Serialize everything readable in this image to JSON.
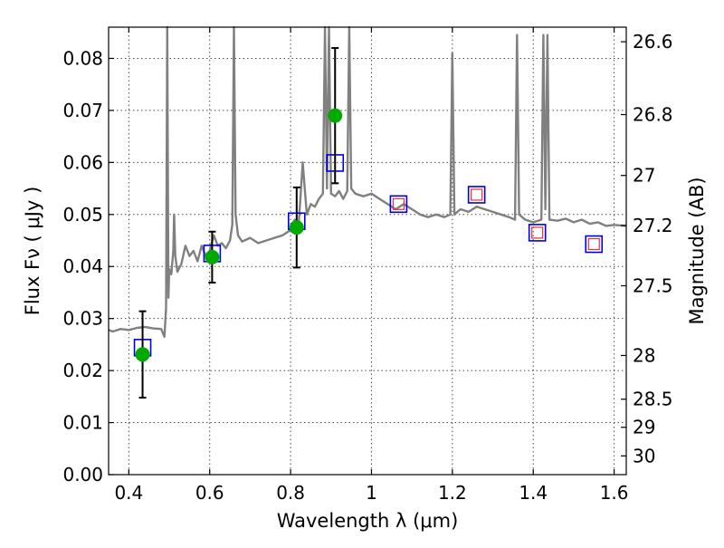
{
  "chart_data": {
    "type": "scatter",
    "title": "",
    "xlabel": "Wavelength  λ (μm)",
    "ylabel": "Flux  Fν  ( μJy )",
    "y2label": "Magnitude (AB)",
    "xlim": [
      0.35,
      1.63
    ],
    "ylim": [
      0.0,
      0.086
    ],
    "x_ticks": [
      0.4,
      0.6,
      0.8,
      1.0,
      1.2,
      1.4,
      1.6
    ],
    "x_tick_labels": [
      "0.4",
      "0.6",
      "0.8",
      "1",
      "1.2",
      "1.4",
      "1.6"
    ],
    "y_ticks": [
      0.0,
      0.01,
      0.02,
      0.03,
      0.04,
      0.05,
      0.06,
      0.07,
      0.08
    ],
    "y_tick_labels": [
      "0.00",
      "0.01",
      "0.02",
      "0.03",
      "0.04",
      "0.05",
      "0.06",
      "0.07",
      "0.08"
    ],
    "y2_ticks": [
      {
        "label": "26.6",
        "flux": 0.0832
      },
      {
        "label": "26.8",
        "flux": 0.0692
      },
      {
        "label": "27",
        "flux": 0.0575
      },
      {
        "label": "27.2",
        "flux": 0.0479
      },
      {
        "label": "27.5",
        "flux": 0.0363
      },
      {
        "label": "28",
        "flux": 0.0229
      },
      {
        "label": "28.5",
        "flux": 0.0145
      },
      {
        "label": "29",
        "flux": 0.0091
      },
      {
        "label": "30",
        "flux": 0.0036
      }
    ],
    "grid": true,
    "colors": {
      "model": "#808080",
      "observed": "#00aa00",
      "model_photometry": "#0000dd",
      "inner_box": "#dd3333",
      "errorbar": "#000000"
    },
    "series": [
      {
        "kind": "line",
        "x": [
          0.35,
          0.36,
          0.38,
          0.4,
          0.42,
          0.44,
          0.46,
          0.48,
          0.488,
          0.492,
          0.495,
          0.498,
          0.5,
          0.505,
          0.51,
          0.512,
          0.515,
          0.52,
          0.53,
          0.54,
          0.55,
          0.56,
          0.57,
          0.58,
          0.59,
          0.6,
          0.61,
          0.62,
          0.63,
          0.64,
          0.65,
          0.656,
          0.66,
          0.664,
          0.67,
          0.68,
          0.7,
          0.72,
          0.74,
          0.76,
          0.78,
          0.8,
          0.81,
          0.82,
          0.83,
          0.84,
          0.85,
          0.86,
          0.87,
          0.88,
          0.885,
          0.89,
          0.895,
          0.9,
          0.91,
          0.92,
          0.93,
          0.94,
          0.945,
          0.95,
          0.96,
          0.98,
          1.0,
          1.02,
          1.04,
          1.06,
          1.08,
          1.1,
          1.12,
          1.14,
          1.16,
          1.18,
          1.195,
          1.2,
          1.205,
          1.22,
          1.24,
          1.26,
          1.28,
          1.3,
          1.32,
          1.34,
          1.355,
          1.36,
          1.365,
          1.38,
          1.4,
          1.42,
          1.425,
          1.43,
          1.435,
          1.44,
          1.46,
          1.48,
          1.5,
          1.52,
          1.54,
          1.56,
          1.58,
          1.6,
          1.63
        ],
        "y": [
          0.0278,
          0.0275,
          0.028,
          0.0278,
          0.0282,
          0.0284,
          0.0281,
          0.028,
          0.0265,
          0.032,
          0.0865,
          0.034,
          0.0395,
          0.0385,
          0.043,
          0.05,
          0.042,
          0.039,
          0.0405,
          0.044,
          0.042,
          0.043,
          0.041,
          0.044,
          0.042,
          0.043,
          0.046,
          0.044,
          0.0445,
          0.0435,
          0.045,
          0.048,
          0.0865,
          0.05,
          0.046,
          0.0448,
          0.0455,
          0.0445,
          0.045,
          0.0455,
          0.046,
          0.047,
          0.049,
          0.048,
          0.06,
          0.05,
          0.052,
          0.0515,
          0.053,
          0.054,
          0.0865,
          0.055,
          0.0865,
          0.054,
          0.0535,
          0.0545,
          0.053,
          0.0545,
          0.0865,
          0.055,
          0.054,
          0.0535,
          0.054,
          0.053,
          0.052,
          0.051,
          0.052,
          0.051,
          0.05,
          0.0495,
          0.05,
          0.0495,
          0.05,
          0.081,
          0.05,
          0.051,
          0.0505,
          0.0515,
          0.051,
          0.0505,
          0.05,
          0.0495,
          0.049,
          0.0845,
          0.05,
          0.049,
          0.0485,
          0.049,
          0.0845,
          0.051,
          0.0845,
          0.049,
          0.0488,
          0.0492,
          0.0485,
          0.049,
          0.0482,
          0.0485,
          0.0478,
          0.048,
          0.0478
        ]
      },
      {
        "kind": "model_photometry",
        "x": [
          0.434,
          0.606,
          0.815,
          0.91,
          1.067,
          1.26,
          1.41,
          1.55
        ],
        "y": [
          0.0244,
          0.0425,
          0.0487,
          0.0599,
          0.052,
          0.0538,
          0.0465,
          0.0443
        ]
      },
      {
        "kind": "observed",
        "x": [
          0.434,
          0.606,
          0.815,
          0.91
        ],
        "y": [
          0.0231,
          0.0418,
          0.0475,
          0.069
        ],
        "err": [
          0.0083,
          0.0049,
          0.0077,
          0.013
        ]
      }
    ]
  }
}
